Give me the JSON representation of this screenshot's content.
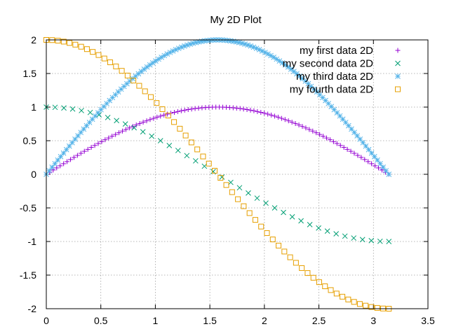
{
  "chart_data": {
    "type": "scatter",
    "title": "My 2D Plot",
    "xlabel": "",
    "ylabel": "",
    "xlim": [
      0,
      3.5
    ],
    "ylim": [
      -2,
      2
    ],
    "x_ticks": [
      "0",
      "0.5",
      "1",
      "1.5",
      "2",
      "2.5",
      "3",
      "3.5"
    ],
    "y_ticks": [
      "2",
      "1.5",
      "1",
      "0.5",
      "0",
      "-0.5",
      "-1",
      "-1.5",
      "-2"
    ],
    "grid": true,
    "legend_position": "top-right",
    "x_range": [
      0,
      3.1416
    ],
    "series": [
      {
        "name": "my first data 2D",
        "marker": "plus",
        "color": "#9400d3",
        "function": "sin(x)",
        "points": 100
      },
      {
        "name": "my second data 2D",
        "marker": "cross",
        "color": "#009e73",
        "function": "cos(x)",
        "points": 40
      },
      {
        "name": "my third data 2D",
        "marker": "star",
        "color": "#56b4e9",
        "function": "2*sin(x)",
        "points": 120
      },
      {
        "name": "my fourth data 2D",
        "marker": "square",
        "color": "#e69f00",
        "function": "2*cos(x)",
        "points": 60
      }
    ]
  }
}
